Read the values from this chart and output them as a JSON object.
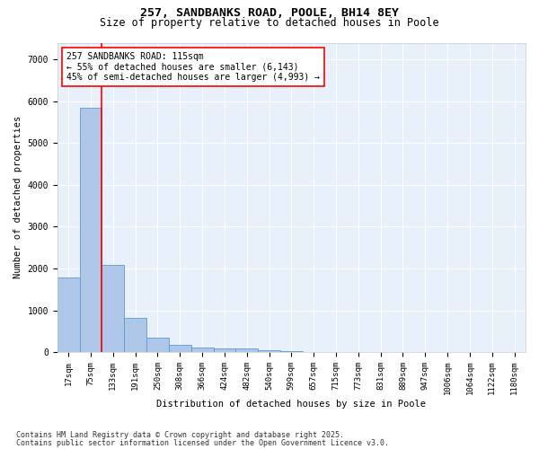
{
  "title_line1": "257, SANDBANKS ROAD, POOLE, BH14 8EY",
  "title_line2": "Size of property relative to detached houses in Poole",
  "xlabel": "Distribution of detached houses by size in Poole",
  "ylabel": "Number of detached properties",
  "categories": [
    "17sqm",
    "75sqm",
    "133sqm",
    "191sqm",
    "250sqm",
    "308sqm",
    "366sqm",
    "424sqm",
    "482sqm",
    "540sqm",
    "599sqm",
    "657sqm",
    "715sqm",
    "773sqm",
    "831sqm",
    "889sqm",
    "947sqm",
    "1006sqm",
    "1064sqm",
    "1122sqm",
    "1180sqm"
  ],
  "values": [
    1780,
    5850,
    2080,
    820,
    340,
    175,
    100,
    90,
    80,
    55,
    25,
    10,
    5,
    3,
    2,
    1,
    1,
    1,
    0,
    0,
    0
  ],
  "bar_color": "#aec6e8",
  "bar_edge_color": "#5b9bd5",
  "vline_color": "red",
  "vline_x_pos": 1.5,
  "annotation_text": "257 SANDBANKS ROAD: 115sqm\n← 55% of detached houses are smaller (6,143)\n45% of semi-detached houses are larger (4,993) →",
  "annotation_box_color": "white",
  "annotation_box_edge": "red",
  "ylim": [
    0,
    7400
  ],
  "yticks": [
    0,
    1000,
    2000,
    3000,
    4000,
    5000,
    6000,
    7000
  ],
  "background_color": "#e8f0fb",
  "grid_color": "white",
  "footer_line1": "Contains HM Land Registry data © Crown copyright and database right 2025.",
  "footer_line2": "Contains public sector information licensed under the Open Government Licence v3.0.",
  "title_fontsize": 9.5,
  "subtitle_fontsize": 8.5,
  "axis_label_fontsize": 7.5,
  "tick_fontsize": 6.5,
  "annotation_fontsize": 7,
  "footer_fontsize": 6
}
